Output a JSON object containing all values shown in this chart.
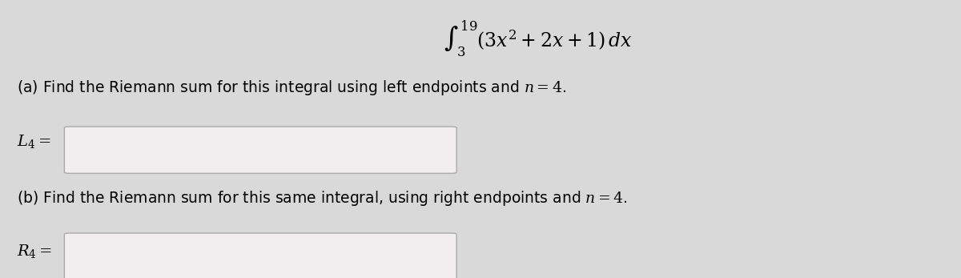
{
  "bg_color": "#d9d9d9",
  "text_color": "#000000",
  "title_integral": "$\\int_3^{19}(3x^2+2x+1)\\,dx$",
  "part_a_text": "(a) Find the Riemann sum for this integral using left endpoints and $n = 4$.",
  "part_b_text": "(b) Find the Riemann sum for this same integral, using right endpoints and $n = 4$.",
  "label_a": "$L_4 =$",
  "label_b": "$R_4 =$",
  "box_color": "#f0eeee",
  "box_edge_color": "#aaaaaa",
  "font_size_main": 13.5,
  "font_size_integral": 17,
  "font_size_label": 14
}
